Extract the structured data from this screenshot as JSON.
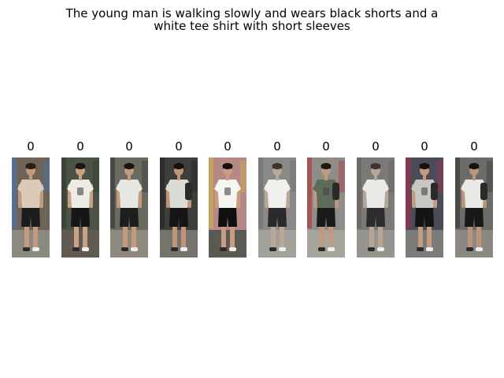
{
  "caption": {
    "line1": "The young man is walking slowly and wears black shorts and a",
    "line2": "white tee shirt with short sleeves"
  },
  "gallery": [
    {
      "label": "0",
      "scene": "shop-interior",
      "bg": "#6f6358",
      "ground": "#8a8a80",
      "shirt": "#d9cbb8",
      "shorts": "#1c1c1c",
      "skin": "#c49a7c",
      "hair": "#2a1e17",
      "pose": "back",
      "bag": false,
      "accent": "#3a78c2"
    },
    {
      "label": "0",
      "scene": "street-crowd",
      "bg": "#4b5246",
      "ground": "#5f5a52",
      "shirt": "#ecebe6",
      "shorts": "#161616",
      "skin": "#c9a184",
      "hair": "#1b1613",
      "pose": "front",
      "bag": false,
      "accent": "#2f3a2a"
    },
    {
      "label": "0",
      "scene": "bike-rack",
      "bg": "#6b6a61",
      "ground": "#8f8a7e",
      "shirt": "#e6e6e2",
      "shorts": "#1e1e1e",
      "skin": "#c49a7a",
      "hair": "#1b1512",
      "pose": "side",
      "bag": false,
      "accent": "#2d2d2d"
    },
    {
      "label": "0",
      "scene": "sidewalk",
      "bg": "#3e3f3b",
      "ground": "#76736c",
      "shirt": "#dcdcd6",
      "shorts": "#151515",
      "skin": "#bf9479",
      "hair": "#141210",
      "pose": "side",
      "bag": true,
      "accent": "#1e1e1e"
    },
    {
      "label": "0",
      "scene": "red-wall",
      "bg": "#b58a86",
      "ground": "#5c5954",
      "shirt": "#f5f5f3",
      "shorts": "#101010",
      "skin": "#c99d80",
      "hair": "#15110e",
      "pose": "front",
      "bag": false,
      "accent": "#d4b23a"
    },
    {
      "label": "0",
      "scene": "grey-street",
      "bg": "#8b8985",
      "ground": "#a2a09b",
      "shirt": "#f0f0ee",
      "shorts": "#2a2a2a",
      "skin": "#b8a896",
      "hair": "#3a3532",
      "pose": "side",
      "bag": false,
      "accent": "#6d6b68"
    },
    {
      "label": "0",
      "scene": "storefront",
      "bg": "#8f8d87",
      "ground": "#a7a49d",
      "shirt": "#5f6b5a",
      "shorts": "#1a1a1a",
      "skin": "#c09a7f",
      "hair": "#1d1915",
      "pose": "front",
      "bag": true,
      "accent": "#b8262a"
    },
    {
      "label": "0",
      "scene": "pavement",
      "bg": "#7c7a76",
      "ground": "#97948f",
      "shirt": "#e9e9e7",
      "shorts": "#2c2c2c",
      "skin": "#b7a596",
      "hair": "#3b3633",
      "pose": "side",
      "bag": false,
      "accent": "#5e5c58"
    },
    {
      "label": "0",
      "scene": "shopping-street",
      "bg": "#4a4d57",
      "ground": "#7c7b78",
      "shirt": "#c7c8c4",
      "shorts": "#141414",
      "skin": "#c39b7f",
      "hair": "#15120f",
      "pose": "front",
      "bag": true,
      "accent": "#c0244a"
    },
    {
      "label": "0",
      "scene": "crosswalk",
      "bg": "#6c6b67",
      "ground": "#8b8882",
      "shirt": "#e8e8e5",
      "shorts": "#181818",
      "skin": "#bb957b",
      "hair": "#16120f",
      "pose": "side",
      "bag": true,
      "accent": "#2e2e2e"
    }
  ]
}
